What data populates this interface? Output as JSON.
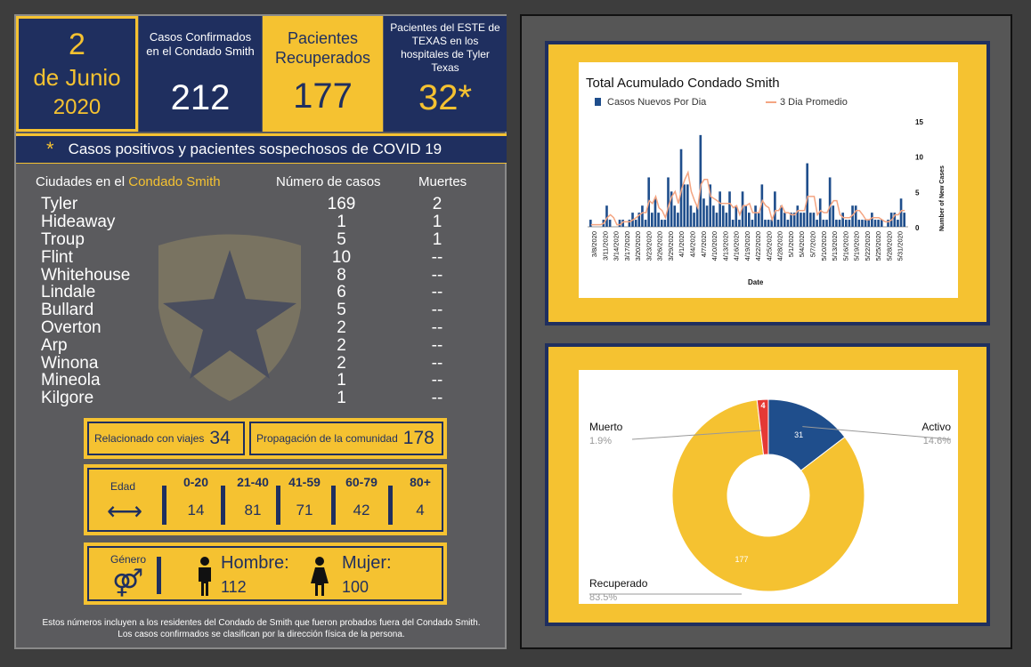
{
  "date": {
    "day": "2",
    "month": "de Junio",
    "year": "2020"
  },
  "stats": {
    "confirmed_label": "Casos Confirmados en el  Condado Smith",
    "confirmed_value": "212",
    "recovered_label": "Pacientes Recuperados",
    "recovered_value": "177",
    "hospital_label": "Pacientes del ESTE de TEXAS en los hospitales de Tyler Texas",
    "hospital_value": "32*"
  },
  "banner": {
    "star": "*",
    "text": "Casos positivos y pacientes sospechosos de COVID 19"
  },
  "cities_header": {
    "city_prefix": "Ciudades en el ",
    "city_highlight": "Condado Smith",
    "cases": "Número de casos",
    "deaths": "Muertes"
  },
  "cities": [
    {
      "name": "Tyler",
      "cases": "169",
      "deaths": "2"
    },
    {
      "name": "Hideaway",
      "cases": "1",
      "deaths": "1"
    },
    {
      "name": "Troup",
      "cases": "5",
      "deaths": "1"
    },
    {
      "name": "Flint",
      "cases": "10",
      "deaths": "--"
    },
    {
      "name": "Whitehouse",
      "cases": "8",
      "deaths": "--"
    },
    {
      "name": "Lindale",
      "cases": "6",
      "deaths": "--"
    },
    {
      "name": "Bullard",
      "cases": "5",
      "deaths": "--"
    },
    {
      "name": "Overton",
      "cases": "2",
      "deaths": "--"
    },
    {
      "name": "Arp",
      "cases": "2",
      "deaths": "--"
    },
    {
      "name": "Winona",
      "cases": "2",
      "deaths": "--"
    },
    {
      "name": "Mineola",
      "cases": "1",
      "deaths": "--"
    },
    {
      "name": "Kilgore",
      "cases": "1",
      "deaths": "--"
    }
  ],
  "travel": {
    "label": "Relacionado con viajes",
    "value": "34"
  },
  "community": {
    "label": "Propagación de la comunidad",
    "value": "178"
  },
  "age": {
    "label": "Edad",
    "arrow": "⟷",
    "groups": [
      {
        "range": "0-20",
        "value": "14"
      },
      {
        "range": "21-40",
        "value": "81"
      },
      {
        "range": "41-59",
        "value": "71"
      },
      {
        "range": "60-79",
        "value": "42"
      },
      {
        "range": "80+",
        "value": "4"
      }
    ]
  },
  "gender": {
    "label": "Género",
    "symbol": "⚤",
    "male_label": "Hombre:",
    "male_value": "112",
    "female_label": "Mujer:",
    "female_value": "100"
  },
  "note": {
    "line1": "Estos números incluyen a los residentes del Condado de Smith que fueron probados fuera del Condado Smith.",
    "line2": "Los casos confirmados se clasifican por la dirección física de la persona."
  },
  "colors": {
    "navy": "#1f2f5f",
    "gold": "#f5c231",
    "bar": "#1f4e8c",
    "avg": "#f4a582",
    "dead": "#e53935"
  },
  "chart_data": [
    {
      "type": "bar",
      "title": "Total Acumulado Condado Smith",
      "xlabel": "Date",
      "ylabel": "Number of New Cases",
      "ylim": [
        0,
        15
      ],
      "yticks": [
        0,
        5,
        10,
        15
      ],
      "legend_position": "top",
      "x_tick_labels": [
        "3/8/2020",
        "3/11/2020",
        "3/14/2020",
        "3/17/2020",
        "3/20/2020",
        "3/23/2020",
        "3/26/2020",
        "3/29/2020",
        "4/1/2020",
        "4/4/2020",
        "4/7/2020",
        "4/10/2020",
        "4/13/2020",
        "4/16/2020",
        "4/19/2020",
        "4/22/2020",
        "4/25/2020",
        "4/28/2020",
        "5/1/2020",
        "5/4/2020",
        "5/7/2020",
        "5/10/2020",
        "5/13/2020",
        "5/16/2020",
        "5/19/2020",
        "5/22/2020",
        "5/25/2020",
        "5/28/2020",
        "5/31/2020"
      ],
      "series": [
        {
          "name": "Casos Nuevos Por Dia",
          "kind": "bar",
          "values": [
            1,
            0,
            0,
            0,
            1,
            3,
            1,
            0,
            0,
            1,
            1,
            0,
            1,
            2,
            1,
            2,
            3,
            1,
            7,
            2,
            4,
            2,
            1,
            1,
            7,
            5,
            3,
            2,
            11,
            6,
            6,
            3,
            2,
            3,
            13,
            4,
            3,
            6,
            3,
            2,
            5,
            3,
            2,
            5,
            1,
            3,
            1,
            5,
            3,
            2,
            1,
            3,
            2,
            6,
            1,
            1,
            1,
            5,
            1,
            3,
            2,
            1,
            2,
            2,
            3,
            2,
            2,
            9,
            2,
            2,
            1,
            4,
            1,
            1,
            7,
            3,
            1,
            1,
            2,
            1,
            1,
            3,
            3,
            1,
            1,
            1,
            1,
            2,
            1,
            1,
            1,
            0,
            1,
            2,
            2,
            1,
            4,
            2
          ]
        },
        {
          "name": "3 Dia Promedio",
          "kind": "line",
          "values": [
            0.3,
            0.3,
            0.3,
            0.3,
            0.5,
            1.3,
            1.7,
            1.3,
            0.3,
            0.3,
            0.7,
            0.7,
            0.7,
            1.0,
            1.3,
            1.7,
            2.0,
            2.0,
            3.7,
            3.3,
            4.3,
            2.7,
            2.3,
            1.3,
            3.0,
            4.3,
            5.0,
            3.3,
            5.3,
            6.7,
            7.7,
            5.0,
            3.7,
            2.7,
            6.0,
            6.7,
            6.7,
            4.3,
            4.0,
            3.7,
            3.3,
            3.3,
            3.3,
            3.3,
            2.7,
            3.0,
            1.7,
            3.0,
            3.0,
            3.3,
            2.0,
            2.0,
            2.0,
            3.7,
            3.0,
            2.7,
            1.0,
            2.3,
            2.3,
            3.0,
            2.0,
            2.0,
            1.7,
            1.7,
            2.3,
            2.3,
            2.3,
            4.3,
            4.3,
            4.3,
            1.7,
            2.3,
            2.0,
            2.0,
            3.0,
            3.7,
            3.7,
            1.7,
            1.3,
            1.3,
            1.3,
            1.7,
            2.3,
            2.3,
            1.7,
            1.0,
            1.0,
            1.3,
            1.3,
            1.3,
            1.0,
            0.7,
            0.7,
            1.0,
            1.7,
            1.7,
            2.3,
            2.3
          ]
        }
      ]
    },
    {
      "type": "pie",
      "donut": true,
      "slices": [
        {
          "label": "Activo",
          "value": 31,
          "percent": "14.6%",
          "color": "#1f4e8c"
        },
        {
          "label": "Recuperado",
          "value": 177,
          "percent": "83.5%",
          "color": "#f5c231"
        },
        {
          "label": "Muerto",
          "value": 4,
          "percent": "1.9%",
          "color": "#e53935"
        }
      ]
    }
  ]
}
